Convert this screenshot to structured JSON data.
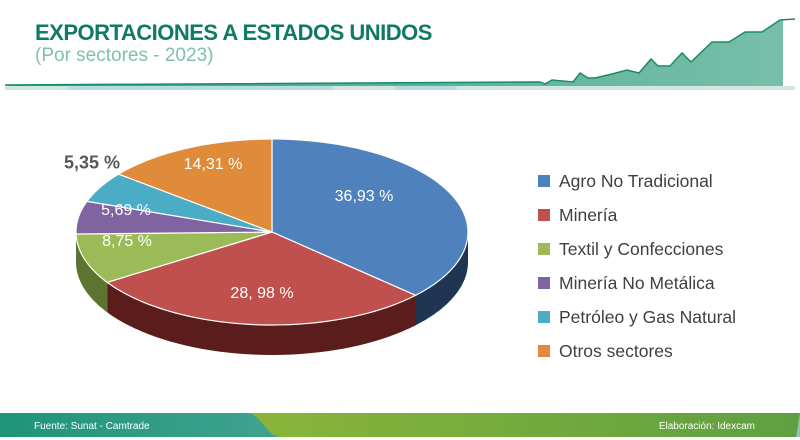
{
  "header": {
    "title": "EXPORTACIONES A ESTADOS UNIDOS",
    "subtitle": "(Por sectores - 2023)"
  },
  "chart_data": {
    "type": "pie",
    "title": "EXPORTACIONES A ESTADOS UNIDOS",
    "subtitle": "(Por sectores - 2023)",
    "legend_position": "right",
    "slices": [
      {
        "name": "Agro No Tradicional",
        "value": 36.93,
        "label": "36,93 %",
        "color": "#4f81bd",
        "side": "#1f3552"
      },
      {
        "name": "Minería",
        "value": 28.98,
        "label": "28, 98 %",
        "color": "#c0504d",
        "side": "#5a1d1c"
      },
      {
        "name": "Textil y Confecciones",
        "value": 8.75,
        "label": "8,75 %",
        "color": "#9bbb59",
        "side": "#5d7330"
      },
      {
        "name": "Minería No Metálica",
        "value": 5.69,
        "label": "5,69 %",
        "color": "#8064a2",
        "side": "#4a3a60"
      },
      {
        "name": "Petróleo y Gas Natural",
        "value": 5.35,
        "label": "5,35 %",
        "color": "#4bacc6",
        "side": "#2a6d80"
      },
      {
        "name": "Otros sectores",
        "value": 14.31,
        "label": "14,31 %",
        "color": "#e08b3a",
        "side": "#8a5020"
      }
    ]
  },
  "footer": {
    "source": "Fuente: Sunat - Camtrade",
    "credit": "Elaboración: Idexcam"
  }
}
